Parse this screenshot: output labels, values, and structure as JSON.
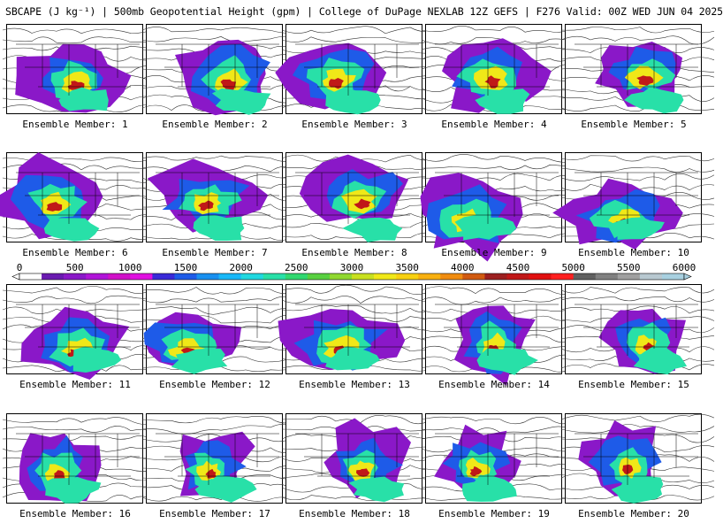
{
  "header": {
    "title": "SBCAPE (J kg⁻¹) | 500mb Geopotential Height (gpm) | College of DuPage NEXLAB 12Z GEFS | F276 Valid: 00Z WED JUN 04 2025"
  },
  "panels": [
    {
      "label": "Ensemble Member: 1"
    },
    {
      "label": "Ensemble Member: 2"
    },
    {
      "label": "Ensemble Member: 3"
    },
    {
      "label": "Ensemble Member: 4"
    },
    {
      "label": "Ensemble Member: 5"
    },
    {
      "label": "Ensemble Member: 6"
    },
    {
      "label": "Ensemble Member: 7"
    },
    {
      "label": "Ensemble Member: 8"
    },
    {
      "label": "Ensemble Member: 9"
    },
    {
      "label": "Ensemble Member: 10"
    },
    {
      "label": "Ensemble Member: 11"
    },
    {
      "label": "Ensemble Member: 12"
    },
    {
      "label": "Ensemble Member: 13"
    },
    {
      "label": "Ensemble Member: 14"
    },
    {
      "label": "Ensemble Member: 15"
    },
    {
      "label": "Ensemble Member: 16"
    },
    {
      "label": "Ensemble Member: 17"
    },
    {
      "label": "Ensemble Member: 18"
    },
    {
      "label": "Ensemble Member: 19"
    },
    {
      "label": "Ensemble Member: 20"
    }
  ],
  "colorbar": {
    "ticks": [
      "0",
      "500",
      "1000",
      "1500",
      "2000",
      "2500",
      "3000",
      "3500",
      "4000",
      "4500",
      "5000",
      "5500",
      "6000"
    ],
    "colors": [
      "#ffffff",
      "#6a1bb0",
      "#8a18c8",
      "#b014d8",
      "#d010c8",
      "#e010e0",
      "#3a2ad8",
      "#1e5be8",
      "#1890f0",
      "#18b8f8",
      "#20d8e0",
      "#28e0a8",
      "#30d870",
      "#58d040",
      "#90d830",
      "#c8e020",
      "#f0e818",
      "#f8d010",
      "#f8b010",
      "#f08c10",
      "#d05a10",
      "#9c2020",
      "#c01818",
      "#e01010",
      "#ff2020",
      "#606060",
      "#808080",
      "#a0a0a0",
      "#b8c8d0",
      "#a8d0e0"
    ]
  },
  "map_colors": {
    "ocean": "#ffffff",
    "contour": "#333333",
    "border": "#000000",
    "cape_low": "#8a18c8",
    "cape_mid_low": "#1e5be8",
    "cape_mid": "#28e0a8",
    "cape_mid_high": "#f0e818",
    "cape_high": "#c01818"
  }
}
